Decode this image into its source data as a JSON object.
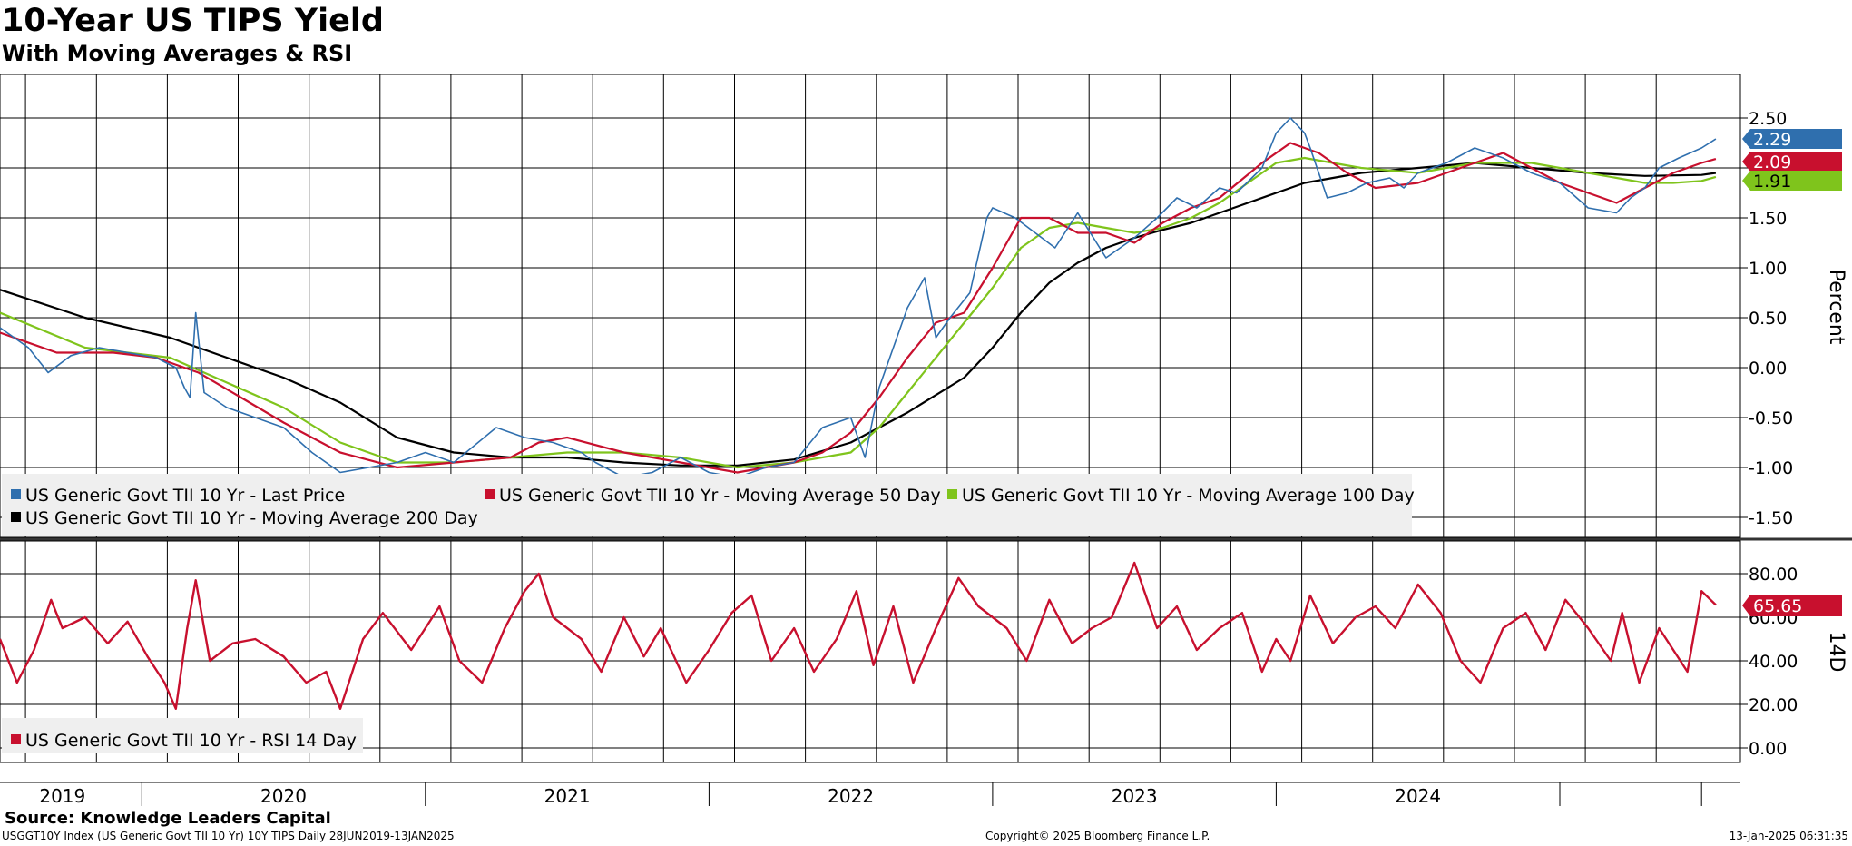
{
  "header": {
    "title": "10-Year US TIPS Yield",
    "subtitle": "With Moving Averages & RSI"
  },
  "footer": {
    "source": "Source: Knowledge Leaders Capital",
    "ticker_info": "USGGT10Y Index (US Generic Govt TII 10 Yr) 10Y TIPS  Daily 28JUN2019-13JAN2025",
    "copyright": "Copyright© 2025 Bloomberg Finance L.P.",
    "timestamp": "13-Jan-2025 06:31:35"
  },
  "colors": {
    "last_price": "#2f6fae",
    "ma50": "#c8102e",
    "ma100": "#7fc41c",
    "ma200": "#000000",
    "rsi": "#c8102e",
    "grid": "#000000"
  },
  "chart_data": [
    {
      "type": "line",
      "name": "price-panel",
      "title": "10-Year US TIPS Yield",
      "ylabel": "Percent",
      "ylim": [
        -1.75,
        2.75
      ],
      "y_ticks": [
        "2.50",
        "2.00",
        "1.50",
        "1.00",
        "0.50",
        "0.00",
        "-0.50",
        "-1.00",
        "-1.50"
      ],
      "x_tick_labels": [
        "2019",
        "2020",
        "2021",
        "2022",
        "2023",
        "2024"
      ],
      "x_range": [
        2019.0,
        2025.06
      ],
      "legend": [
        {
          "label": "US Generic Govt TII 10 Yr - Last Price",
          "color": "#2f6fae"
        },
        {
          "label": "US Generic Govt TII 10 Yr - Moving Average 50 Day",
          "color": "#c8102e"
        },
        {
          "label": "US Generic Govt TII 10 Yr - Moving Average 100 Day",
          "color": "#7fc41c"
        },
        {
          "label": "US Generic Govt TII 10 Yr - Moving Average 200 Day",
          "color": "#000000"
        }
      ],
      "end_labels": [
        {
          "value": "2.29",
          "color": "#2f6fae"
        },
        {
          "value": "2.09",
          "color": "#c8102e"
        },
        {
          "value": "1.91",
          "color": "#7fc41c"
        }
      ],
      "series": [
        {
          "name": "Last Price",
          "color": "#2f6fae",
          "x": [
            2019.0,
            2019.1,
            2019.17,
            2019.25,
            2019.35,
            2019.45,
            2019.55,
            2019.62,
            2019.65,
            2019.67,
            2019.69,
            2019.72,
            2019.8,
            2019.9,
            2020.0,
            2020.1,
            2020.2,
            2020.3,
            2020.4,
            2020.5,
            2020.6,
            2020.75,
            2020.85,
            2020.95,
            2021.05,
            2021.1,
            2021.2,
            2021.3,
            2021.4,
            2021.5,
            2021.6,
            2021.7,
            2021.8,
            2021.9,
            2022.0,
            2022.05,
            2022.1,
            2022.2,
            2022.26,
            2022.3,
            2022.35,
            2022.42,
            2022.48,
            2022.5,
            2022.58,
            2022.65,
            2022.72,
            2022.8,
            2022.9,
            2023.0,
            2023.08,
            2023.15,
            2023.22,
            2023.3,
            2023.36,
            2023.45,
            2023.5,
            2023.55,
            2023.6,
            2023.62,
            2023.68,
            2023.75,
            2023.82,
            2023.9,
            2023.95,
            2024.0,
            2024.1,
            2024.2,
            2024.3,
            2024.4,
            2024.5,
            2024.6,
            2024.7,
            2024.75,
            2024.8,
            2024.85,
            2024.92,
            2025.0,
            2025.05
          ],
          "y": [
            0.4,
            0.2,
            -0.05,
            0.12,
            0.2,
            0.15,
            0.1,
            0.0,
            -0.2,
            -0.3,
            0.55,
            -0.25,
            -0.4,
            -0.5,
            -0.6,
            -0.85,
            -1.05,
            -1.0,
            -0.95,
            -0.85,
            -0.95,
            -0.6,
            -0.7,
            -0.75,
            -0.85,
            -0.95,
            -1.1,
            -1.05,
            -0.9,
            -1.05,
            -1.1,
            -1.0,
            -0.95,
            -0.6,
            -0.5,
            -0.9,
            -0.2,
            0.6,
            0.9,
            0.3,
            0.5,
            0.75,
            1.5,
            1.6,
            1.5,
            1.35,
            1.2,
            1.55,
            1.1,
            1.3,
            1.5,
            1.7,
            1.6,
            1.8,
            1.75,
            2.0,
            2.35,
            2.5,
            2.35,
            2.2,
            1.7,
            1.75,
            1.85,
            1.9,
            1.8,
            1.95,
            2.05,
            2.2,
            2.1,
            1.95,
            1.85,
            1.6,
            1.55,
            1.7,
            1.8,
            2.0,
            2.1,
            2.2,
            2.29
          ]
        },
        {
          "name": "Moving Average 50 Day",
          "color": "#c8102e",
          "x": [
            2019.0,
            2019.2,
            2019.4,
            2019.55,
            2019.7,
            2019.85,
            2020.0,
            2020.2,
            2020.4,
            2020.6,
            2020.8,
            2020.9,
            2021.0,
            2021.2,
            2021.4,
            2021.6,
            2021.8,
            2021.9,
            2022.0,
            2022.1,
            2022.2,
            2022.3,
            2022.4,
            2022.5,
            2022.6,
            2022.7,
            2022.8,
            2022.9,
            2023.0,
            2023.1,
            2023.2,
            2023.3,
            2023.45,
            2023.55,
            2023.65,
            2023.75,
            2023.85,
            2024.0,
            2024.1,
            2024.2,
            2024.3,
            2024.4,
            2024.5,
            2024.6,
            2024.7,
            2024.8,
            2024.9,
            2025.0,
            2025.05
          ],
          "y": [
            0.35,
            0.15,
            0.15,
            0.1,
            -0.05,
            -0.3,
            -0.55,
            -0.85,
            -1.0,
            -0.95,
            -0.9,
            -0.75,
            -0.7,
            -0.85,
            -0.95,
            -1.05,
            -0.95,
            -0.85,
            -0.65,
            -0.3,
            0.1,
            0.45,
            0.55,
            1.0,
            1.5,
            1.5,
            1.35,
            1.35,
            1.25,
            1.45,
            1.6,
            1.7,
            2.05,
            2.25,
            2.15,
            1.95,
            1.8,
            1.85,
            1.95,
            2.05,
            2.15,
            2.0,
            1.85,
            1.75,
            1.65,
            1.8,
            1.95,
            2.05,
            2.09
          ]
        },
        {
          "name": "Moving Average 100 Day",
          "color": "#7fc41c",
          "x": [
            2019.0,
            2019.3,
            2019.6,
            2019.8,
            2020.0,
            2020.2,
            2020.4,
            2020.6,
            2020.8,
            2021.0,
            2021.2,
            2021.4,
            2021.6,
            2021.8,
            2022.0,
            2022.1,
            2022.2,
            2022.3,
            2022.4,
            2022.5,
            2022.6,
            2022.7,
            2022.8,
            2022.9,
            2023.0,
            2023.1,
            2023.2,
            2023.3,
            2023.4,
            2023.5,
            2023.6,
            2023.7,
            2023.8,
            2024.0,
            2024.2,
            2024.4,
            2024.6,
            2024.8,
            2024.9,
            2025.0,
            2025.05
          ],
          "y": [
            0.55,
            0.2,
            0.1,
            -0.15,
            -0.4,
            -0.75,
            -0.95,
            -0.95,
            -0.9,
            -0.85,
            -0.85,
            -0.9,
            -1.0,
            -0.95,
            -0.85,
            -0.6,
            -0.25,
            0.1,
            0.45,
            0.8,
            1.2,
            1.4,
            1.45,
            1.4,
            1.35,
            1.4,
            1.5,
            1.65,
            1.85,
            2.05,
            2.1,
            2.05,
            2.0,
            1.95,
            2.05,
            2.05,
            1.95,
            1.85,
            1.85,
            1.87,
            1.91
          ]
        },
        {
          "name": "Moving Average 200 Day",
          "color": "#000000",
          "x": [
            2019.0,
            2019.3,
            2019.6,
            2019.8,
            2020.0,
            2020.2,
            2020.4,
            2020.6,
            2020.8,
            2021.0,
            2021.2,
            2021.4,
            2021.6,
            2021.8,
            2022.0,
            2022.2,
            2022.4,
            2022.5,
            2022.6,
            2022.7,
            2022.8,
            2022.9,
            2023.0,
            2023.1,
            2023.2,
            2023.3,
            2023.4,
            2023.5,
            2023.6,
            2023.8,
            2024.0,
            2024.2,
            2024.4,
            2024.6,
            2024.8,
            2025.0,
            2025.05
          ],
          "y": [
            0.78,
            0.5,
            0.3,
            0.1,
            -0.1,
            -0.35,
            -0.7,
            -0.85,
            -0.9,
            -0.9,
            -0.95,
            -0.98,
            -0.98,
            -0.92,
            -0.75,
            -0.45,
            -0.1,
            0.2,
            0.55,
            0.85,
            1.05,
            1.2,
            1.3,
            1.38,
            1.45,
            1.55,
            1.65,
            1.75,
            1.85,
            1.95,
            2.0,
            2.05,
            2.0,
            1.95,
            1.92,
            1.93,
            1.95
          ]
        }
      ]
    },
    {
      "type": "line",
      "name": "rsi-panel",
      "ylabel": "14D",
      "ylim": [
        -5,
        95
      ],
      "y_ticks": [
        "80.00",
        "60.00",
        "40.00",
        "20.00",
        "0.00"
      ],
      "legend": [
        {
          "label": "US Generic Govt TII 10 Yr - RSI 14 Day",
          "color": "#c8102e"
        }
      ],
      "end_labels": [
        {
          "value": "65.65",
          "color": "#c8102e"
        }
      ],
      "series": [
        {
          "name": "RSI 14 Day",
          "color": "#c8102e",
          "x": [
            2019.0,
            2019.06,
            2019.12,
            2019.18,
            2019.22,
            2019.3,
            2019.38,
            2019.45,
            2019.52,
            2019.58,
            2019.62,
            2019.66,
            2019.69,
            2019.74,
            2019.82,
            2019.9,
            2020.0,
            2020.08,
            2020.15,
            2020.2,
            2020.28,
            2020.35,
            2020.45,
            2020.55,
            2020.62,
            2020.7,
            2020.78,
            2020.85,
            2020.9,
            2020.95,
            2021.05,
            2021.12,
            2021.2,
            2021.27,
            2021.33,
            2021.42,
            2021.5,
            2021.58,
            2021.65,
            2021.72,
            2021.8,
            2021.87,
            2021.95,
            2022.02,
            2022.08,
            2022.15,
            2022.22,
            2022.3,
            2022.38,
            2022.45,
            2022.5,
            2022.55,
            2022.62,
            2022.7,
            2022.78,
            2022.85,
            2022.92,
            2023.0,
            2023.08,
            2023.15,
            2023.22,
            2023.3,
            2023.38,
            2023.45,
            2023.5,
            2023.55,
            2023.62,
            2023.7,
            2023.78,
            2023.85,
            2023.92,
            2024.0,
            2024.08,
            2024.15,
            2024.22,
            2024.3,
            2024.38,
            2024.45,
            2024.52,
            2024.6,
            2024.68,
            2024.72,
            2024.78,
            2024.85,
            2024.9,
            2024.95,
            2025.0,
            2025.05
          ],
          "y": [
            50,
            30,
            45,
            68,
            55,
            60,
            48,
            58,
            42,
            30,
            18,
            55,
            77,
            40,
            48,
            50,
            42,
            30,
            35,
            18,
            50,
            62,
            45,
            65,
            40,
            30,
            55,
            72,
            80,
            60,
            50,
            35,
            60,
            42,
            55,
            30,
            45,
            62,
            70,
            40,
            55,
            35,
            50,
            72,
            38,
            65,
            30,
            55,
            78,
            65,
            60,
            55,
            40,
            68,
            48,
            55,
            60,
            85,
            55,
            65,
            45,
            55,
            62,
            35,
            50,
            40,
            70,
            48,
            60,
            65,
            55,
            75,
            62,
            40,
            30,
            55,
            62,
            45,
            68,
            55,
            40,
            62,
            30,
            55,
            45,
            35,
            72,
            65.65
          ]
        }
      ]
    }
  ]
}
